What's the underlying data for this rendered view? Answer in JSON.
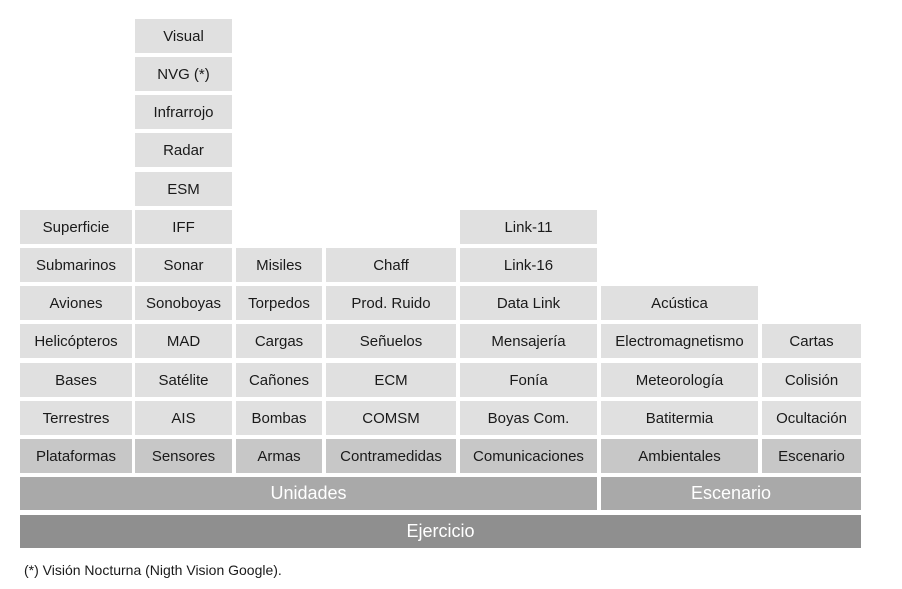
{
  "columns": [
    {
      "name": "plataformas",
      "header": "Plataformas",
      "items": [
        "Terrestres",
        "Bases",
        "Helicópteros",
        "Aviones",
        "Submarinos",
        "Superficie"
      ]
    },
    {
      "name": "sensores",
      "header": "Sensores",
      "items": [
        "AIS",
        "Satélite",
        "MAD",
        "Sonoboyas",
        "Sonar",
        "IFF",
        "ESM",
        "Radar",
        "Infrarrojo",
        "NVG (*)",
        "Visual"
      ]
    },
    {
      "name": "armas",
      "header": "Armas",
      "items": [
        "Bombas",
        "Cañones",
        "Cargas",
        "Torpedos",
        "Misiles"
      ]
    },
    {
      "name": "contramedidas",
      "header": "Contramedidas",
      "items": [
        "COMSM",
        "ECM",
        "Señuelos",
        "Prod. Ruido",
        "Chaff"
      ]
    },
    {
      "name": "comunicaciones",
      "header": "Comunicaciones",
      "items": [
        "Boyas Com.",
        "Fonía",
        "Mensajería",
        "Data Link",
        "Link-16",
        "Link-11"
      ]
    },
    {
      "name": "ambientales",
      "header": "Ambientales",
      "items": [
        "Batitermia",
        "Meteorología",
        "Electromagnetismo",
        "Acústica"
      ]
    },
    {
      "name": "escenario",
      "header": "Escenario",
      "items": [
        "Ocultación",
        "Colisión",
        "Cartas"
      ]
    }
  ],
  "groups": {
    "unidades": "Unidades",
    "escenario": "Escenario"
  },
  "base": "Ejercicio",
  "footnote": "(*) Visión Nocturna (Nigth Vision Google)."
}
